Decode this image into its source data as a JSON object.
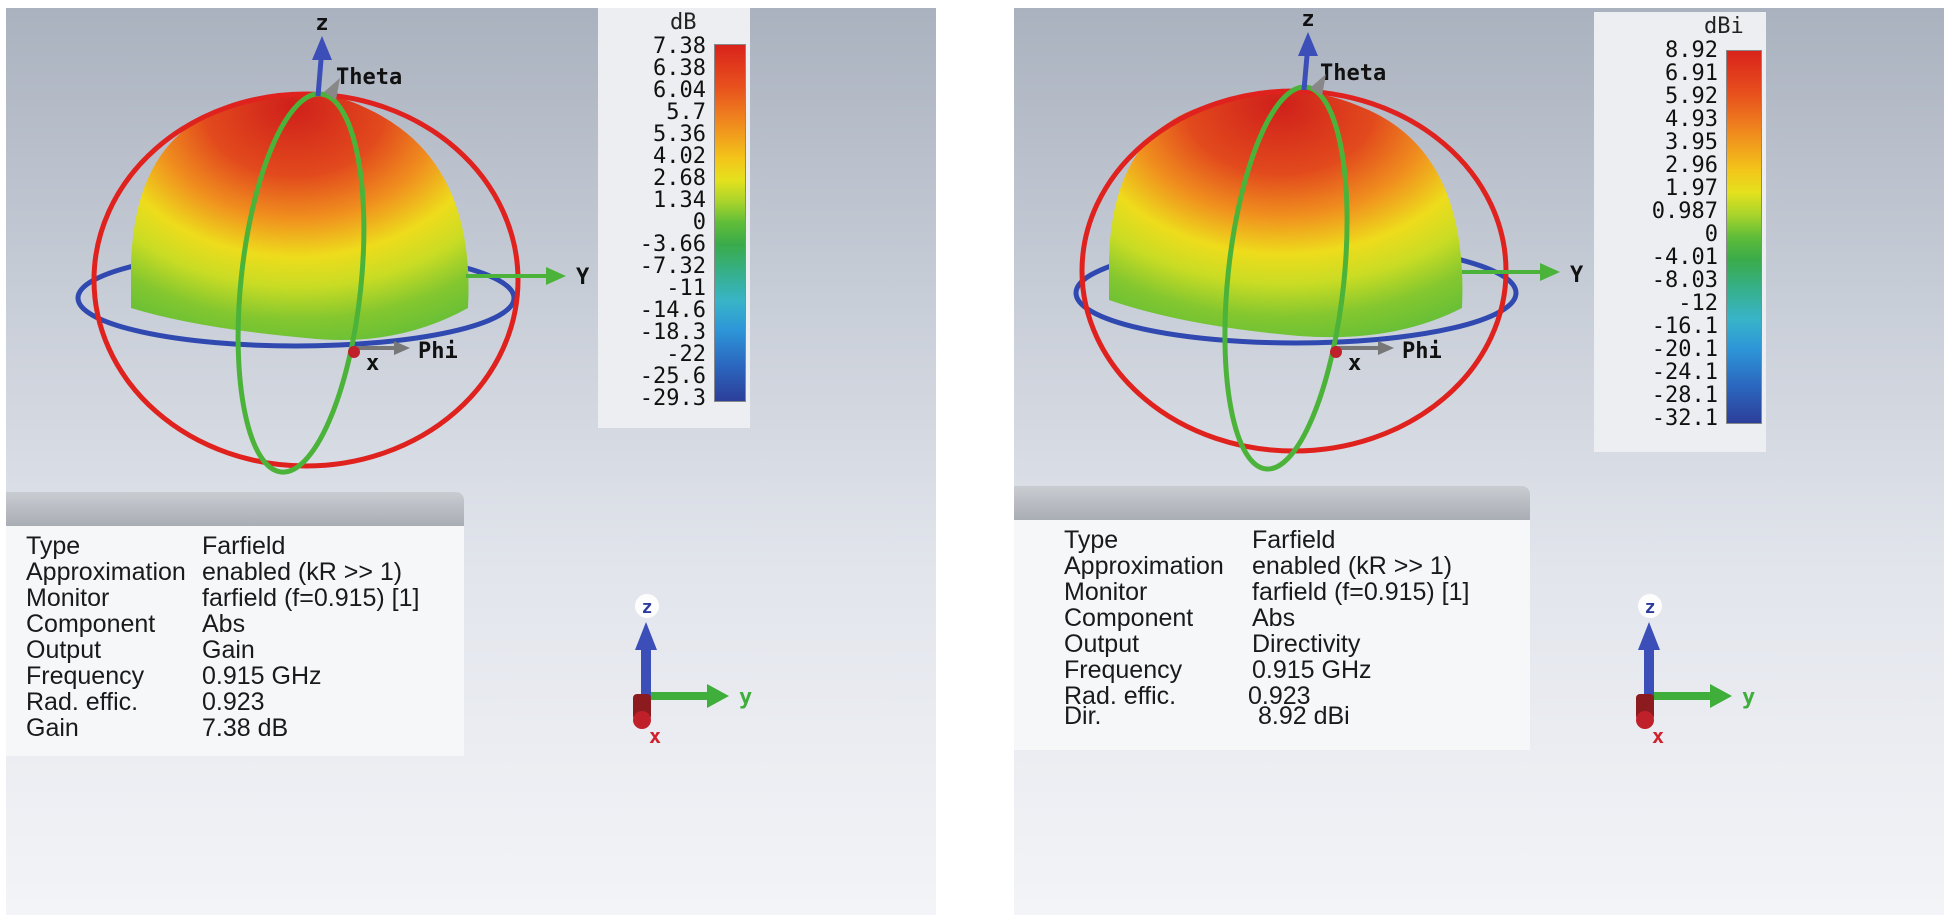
{
  "views": [
    {
      "legend": {
        "unit": "dB",
        "ticks": [
          "7.38",
          "6.38",
          "6.04",
          "5.7",
          "5.36",
          "4.02",
          "2.68",
          "1.34",
          "0",
          "-3.66",
          "-7.32",
          "-11",
          "-14.6",
          "-18.3",
          "-22",
          "-25.6",
          "-29.3"
        ]
      },
      "axes": {
        "z": "z",
        "theta": "Theta",
        "y": "Y",
        "phi": "Phi",
        "x": "x"
      },
      "mini_axes": {
        "z": "z",
        "y": "y",
        "x": "x"
      },
      "info": [
        {
          "key": "Type",
          "value": "Farfield"
        },
        {
          "key": "Approximation",
          "value": "enabled (kR >> 1)"
        },
        {
          "key": "Monitor",
          "value": "farfield (f=0.915) [1]"
        },
        {
          "key": "Component",
          "value": "Abs"
        },
        {
          "key": "Output",
          "value": "Gain"
        },
        {
          "key": "Frequency",
          "value": "0.915 GHz"
        },
        {
          "key": "Rad. effic.",
          "value": "0.923"
        },
        {
          "key": "Gain",
          "value": "7.38 dB"
        }
      ]
    },
    {
      "legend": {
        "unit": "dBi",
        "ticks": [
          "8.92",
          "6.91",
          "5.92",
          "4.93",
          "3.95",
          "2.96",
          "1.97",
          "0.987",
          "0",
          "-4.01",
          "-8.03",
          "-12",
          "-16.1",
          "-20.1",
          "-24.1",
          "-28.1",
          "-32.1"
        ]
      },
      "axes": {
        "z": "z",
        "theta": "Theta",
        "y": "Y",
        "phi": "Phi",
        "x": "x"
      },
      "mini_axes": {
        "z": "z",
        "y": "y",
        "x": "x"
      },
      "info": [
        {
          "key": "Type",
          "value": "Farfield"
        },
        {
          "key": "Approximation",
          "value": "enabled (kR >> 1)"
        },
        {
          "key": "Monitor",
          "value": "farfield (f=0.915) [1]"
        },
        {
          "key": "Component",
          "value": "Abs"
        },
        {
          "key": "Output",
          "value": "Directivity"
        },
        {
          "key": "Frequency",
          "value": "0.915 GHz"
        },
        {
          "key": "Rad. effic.",
          "value": "0.923"
        },
        {
          "key": "Dir.",
          "value": "8.92 dBi"
        }
      ]
    }
  ],
  "colors": {
    "pattern_top": "#d8241c",
    "pattern_mid": "#e9e11d",
    "pattern_low": "#5fbd39",
    "circle_red": "#e0221f",
    "circle_blue": "#2f49b0",
    "circle_green": "#4cb33a"
  }
}
